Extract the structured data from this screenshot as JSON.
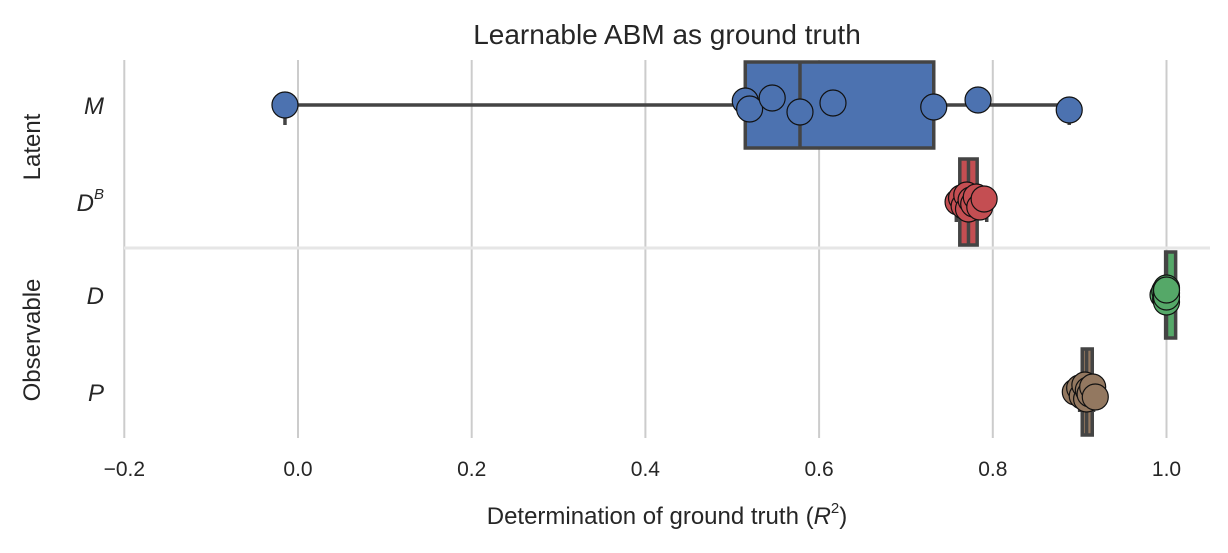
{
  "chart_data": {
    "type": "box-strip",
    "title": "Learnable ABM as ground truth",
    "xlabel": "Determination of ground truth (",
    "xlabel_math": "R",
    "xlabel_sup": "2",
    "xlabel_end": ")",
    "xlim": [
      -0.2,
      1.05
    ],
    "xticks": [
      -0.2,
      0.0,
      0.2,
      0.4,
      0.6,
      0.8,
      1.0
    ],
    "xtick_labels": [
      "−0.2",
      "0.0",
      "0.2",
      "0.4",
      "0.6",
      "0.8",
      "1.0"
    ],
    "grid": "vertical",
    "groups": [
      {
        "label": "Latent",
        "categories": [
          "M",
          "D^B"
        ]
      },
      {
        "label": "Observable",
        "categories": [
          "D",
          "P"
        ]
      }
    ],
    "categories": [
      {
        "label": "M",
        "base": "M",
        "sup": "",
        "color": "#4C72B0",
        "box": {
          "q1": 0.515,
          "median": 0.578,
          "q3": 0.732,
          "whisker_low": -0.015,
          "whisker_high": 0.888
        },
        "points": [
          -0.015,
          0.515,
          0.52,
          0.546,
          0.578,
          0.616,
          0.732,
          0.783,
          0.888
        ]
      },
      {
        "label": "D^B",
        "base": "D",
        "sup": "B",
        "color": "#C44E52",
        "box": {
          "q1": 0.762,
          "median": 0.772,
          "q3": 0.782,
          "whisker_low": 0.758,
          "whisker_high": 0.793
        },
        "points": [
          0.76,
          0.764,
          0.767,
          0.77,
          0.772,
          0.775,
          0.778,
          0.781,
          0.785,
          0.79
        ]
      },
      {
        "label": "D",
        "base": "D",
        "sup": "",
        "color": "#55A868",
        "box": {
          "q1": 0.999,
          "median": 1.0,
          "q3": 1.0,
          "whisker_low": 0.997,
          "whisker_high": 1.0
        },
        "points": [
          0.996,
          0.998,
          0.999,
          1.0,
          1.0,
          1.0,
          1.0,
          1.0
        ]
      },
      {
        "label": "P",
        "base": "P",
        "sup": "",
        "color": "#937860",
        "box": {
          "q1": 0.903,
          "median": 0.908,
          "q3": 0.913,
          "whisker_low": 0.9,
          "whisker_high": 0.916
        },
        "points": [
          0.895,
          0.9,
          0.903,
          0.906,
          0.908,
          0.91,
          0.912,
          0.915,
          0.918
        ]
      }
    ]
  }
}
